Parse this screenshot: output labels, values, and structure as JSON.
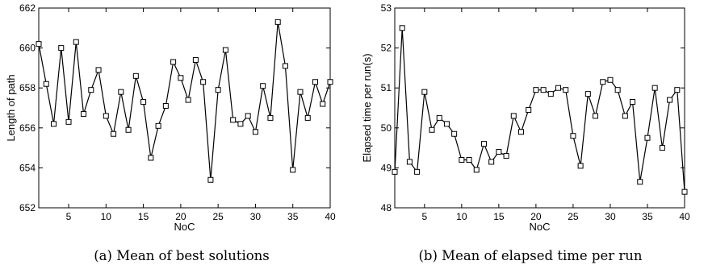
{
  "chart_data": [
    {
      "type": "line",
      "caption": "(a) Mean of best solutions",
      "title": "",
      "xlabel": "NoC",
      "ylabel": "Length of path",
      "xlim": [
        1,
        40
      ],
      "ylim": [
        652,
        662
      ],
      "xticks": [
        5,
        10,
        15,
        20,
        25,
        30,
        35,
        40
      ],
      "yticks": [
        652,
        654,
        656,
        658,
        660,
        662
      ],
      "grid": false,
      "marker": "square",
      "x": [
        1,
        2,
        3,
        4,
        5,
        6,
        7,
        8,
        9,
        10,
        11,
        12,
        13,
        14,
        15,
        16,
        17,
        18,
        19,
        20,
        21,
        22,
        23,
        24,
        25,
        26,
        27,
        28,
        29,
        30,
        31,
        32,
        33,
        34,
        35,
        36,
        37,
        38,
        39,
        40
      ],
      "series": [
        {
          "values": [
            660.2,
            658.2,
            656.2,
            660.0,
            656.3,
            660.3,
            656.7,
            657.9,
            658.9,
            656.6,
            655.7,
            657.8,
            655.9,
            658.6,
            657.3,
            654.5,
            656.1,
            657.1,
            659.3,
            658.5,
            657.4,
            659.4,
            658.3,
            653.4,
            657.9,
            659.9,
            656.4,
            656.2,
            656.6,
            655.8,
            658.1,
            656.5,
            661.3,
            659.1,
            653.9,
            657.8,
            656.5,
            658.3,
            657.2,
            658.3
          ]
        }
      ]
    },
    {
      "type": "line",
      "caption": "(b) Mean of elapsed time per run",
      "title": "",
      "xlabel": "NoC",
      "ylabel": "Elapsed time per run(s)",
      "xlim": [
        1,
        40
      ],
      "ylim": [
        48,
        53
      ],
      "xticks": [
        5,
        10,
        15,
        20,
        25,
        30,
        35,
        40
      ],
      "yticks": [
        48,
        49,
        50,
        51,
        52,
        53
      ],
      "grid": false,
      "marker": "square",
      "x": [
        1,
        2,
        3,
        4,
        5,
        6,
        7,
        8,
        9,
        10,
        11,
        12,
        13,
        14,
        15,
        16,
        17,
        18,
        19,
        20,
        21,
        22,
        23,
        24,
        25,
        26,
        27,
        28,
        29,
        30,
        31,
        32,
        33,
        34,
        35,
        36,
        37,
        38,
        39,
        40
      ],
      "series": [
        {
          "values": [
            48.9,
            52.5,
            49.15,
            48.9,
            50.9,
            49.95,
            50.25,
            50.1,
            49.85,
            49.2,
            49.2,
            48.95,
            49.6,
            49.15,
            49.4,
            49.3,
            50.3,
            49.9,
            50.45,
            50.95,
            50.95,
            50.85,
            51.0,
            50.95,
            49.8,
            49.05,
            50.85,
            50.3,
            51.15,
            51.2,
            50.95,
            50.3,
            50.65,
            48.65,
            49.75,
            51.0,
            49.5,
            50.7,
            50.95,
            48.4
          ]
        }
      ]
    }
  ]
}
